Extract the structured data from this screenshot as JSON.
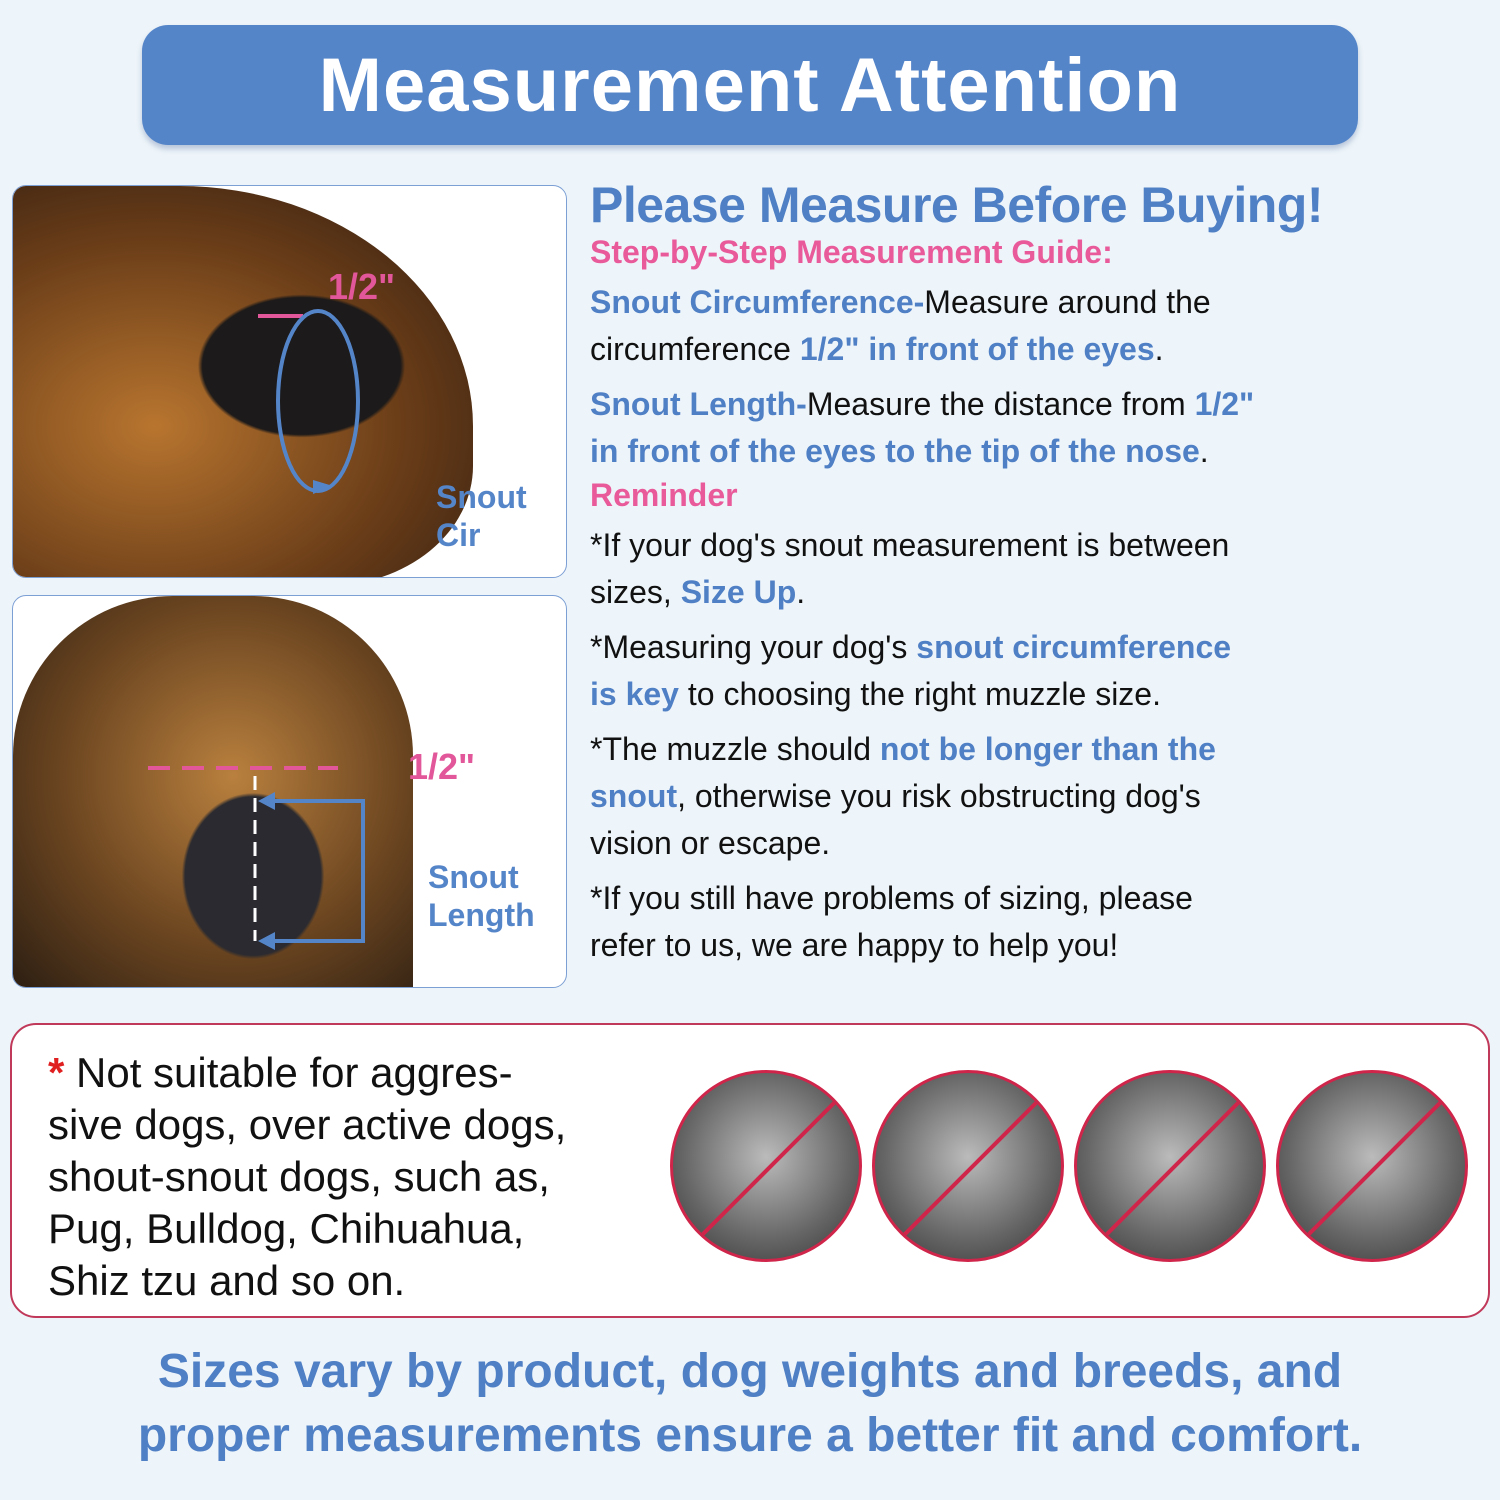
{
  "colors": {
    "blue": "#4f7fc4",
    "pink": "#e85a9a",
    "banner": "#5585c9",
    "warning_border": "#c0395a",
    "background": "#eef5fa"
  },
  "banner": {
    "title": "Measurement Attention"
  },
  "panel_side": {
    "half_inch": "1/2\"",
    "label_line1": "Snout",
    "label_line2": "Cir"
  },
  "panel_front": {
    "half_inch": "1/2\"",
    "label_line1": "Snout",
    "label_line2": "Length"
  },
  "right": {
    "heading": "Please Measure Before Buying!",
    "subheading": "Step-by-Step Measurement Guide:",
    "reminder": "Reminder",
    "paragraphs": [
      [
        [
          {
            "t": "Snout Circumference-",
            "c": "b"
          },
          {
            "t": "Measure around the",
            "c": "n"
          }
        ],
        [
          {
            "t": "circumference ",
            "c": "n"
          },
          {
            "t": "1/2\" in front of the eyes",
            "c": "b"
          },
          {
            "t": ".",
            "c": "n"
          }
        ]
      ],
      [
        [
          {
            "t": "Snout Length-",
            "c": "b"
          },
          {
            "t": "Measure the distance from ",
            "c": "n"
          },
          {
            "t": "1/2\"",
            "c": "b"
          }
        ],
        [
          {
            "t": "in front of the eyes to the tip of the nose",
            "c": "b"
          },
          {
            "t": ".",
            "c": "n"
          }
        ]
      ]
    ],
    "reminders": [
      [
        [
          {
            "t": "*If your dog's snout measurement is between",
            "c": "n"
          }
        ],
        [
          {
            "t": "sizes, ",
            "c": "n"
          },
          {
            "t": "Size Up",
            "c": "b"
          },
          {
            "t": ".",
            "c": "n"
          }
        ]
      ],
      [
        [
          {
            "t": "*Measuring your dog's ",
            "c": "n"
          },
          {
            "t": "snout circumference",
            "c": "b"
          }
        ],
        [
          {
            "t": "is key",
            "c": "b"
          },
          {
            "t": " to choosing the right muzzle size.",
            "c": "n"
          }
        ]
      ],
      [
        [
          {
            "t": "*The muzzle should ",
            "c": "n"
          },
          {
            "t": "not be longer than the",
            "c": "b"
          }
        ],
        [
          {
            "t": "snout",
            "c": "b"
          },
          {
            "t": ", otherwise you risk obstructing dog's",
            "c": "n"
          }
        ],
        [
          {
            "t": "vision or escape.",
            "c": "n"
          }
        ]
      ],
      [
        [
          {
            "t": "*If you still have problems of sizing, please",
            "c": "n"
          }
        ],
        [
          {
            "t": "refer to us, we are happy to help you!",
            "c": "n"
          }
        ]
      ]
    ]
  },
  "warning": {
    "star": "*",
    "lines": [
      " Not suitable for aggres-",
      "sive dogs, over active dogs,",
      "shout-snout dogs, such as,",
      "Pug, Bulldog, Chihuahua,",
      "Shiz tzu and so on."
    ],
    "icons": [
      "no-pug-icon",
      "no-bulldog-icon",
      "no-shih-tzu-icon",
      "no-french-bulldog-icon"
    ]
  },
  "footer": {
    "line1": "Sizes vary by product, dog weights and breeds, and",
    "line2": "proper measurements ensure a better fit and comfort."
  }
}
